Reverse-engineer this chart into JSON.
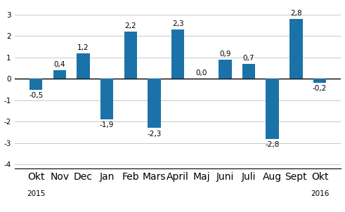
{
  "categories": [
    "Okt",
    "Nov",
    "Dec",
    "Jan",
    "Feb",
    "Mars",
    "April",
    "Maj",
    "Juni",
    "Juli",
    "Aug",
    "Sept",
    "Okt"
  ],
  "values": [
    -0.5,
    0.4,
    1.2,
    -1.9,
    2.2,
    -2.3,
    2.3,
    0.0,
    0.9,
    0.7,
    -2.8,
    2.8,
    -0.2
  ],
  "bar_color": "#1B72A8",
  "ylim": [
    -4.2,
    3.5
  ],
  "yticks": [
    -4,
    -3,
    -2,
    -1,
    0,
    1,
    2,
    3
  ],
  "tick_fontsize": 7.5,
  "year_fontsize": 7.5,
  "value_fontsize": 7.5,
  "background_color": "#ffffff",
  "grid_color": "#c8c8c8",
  "bar_width": 0.55
}
